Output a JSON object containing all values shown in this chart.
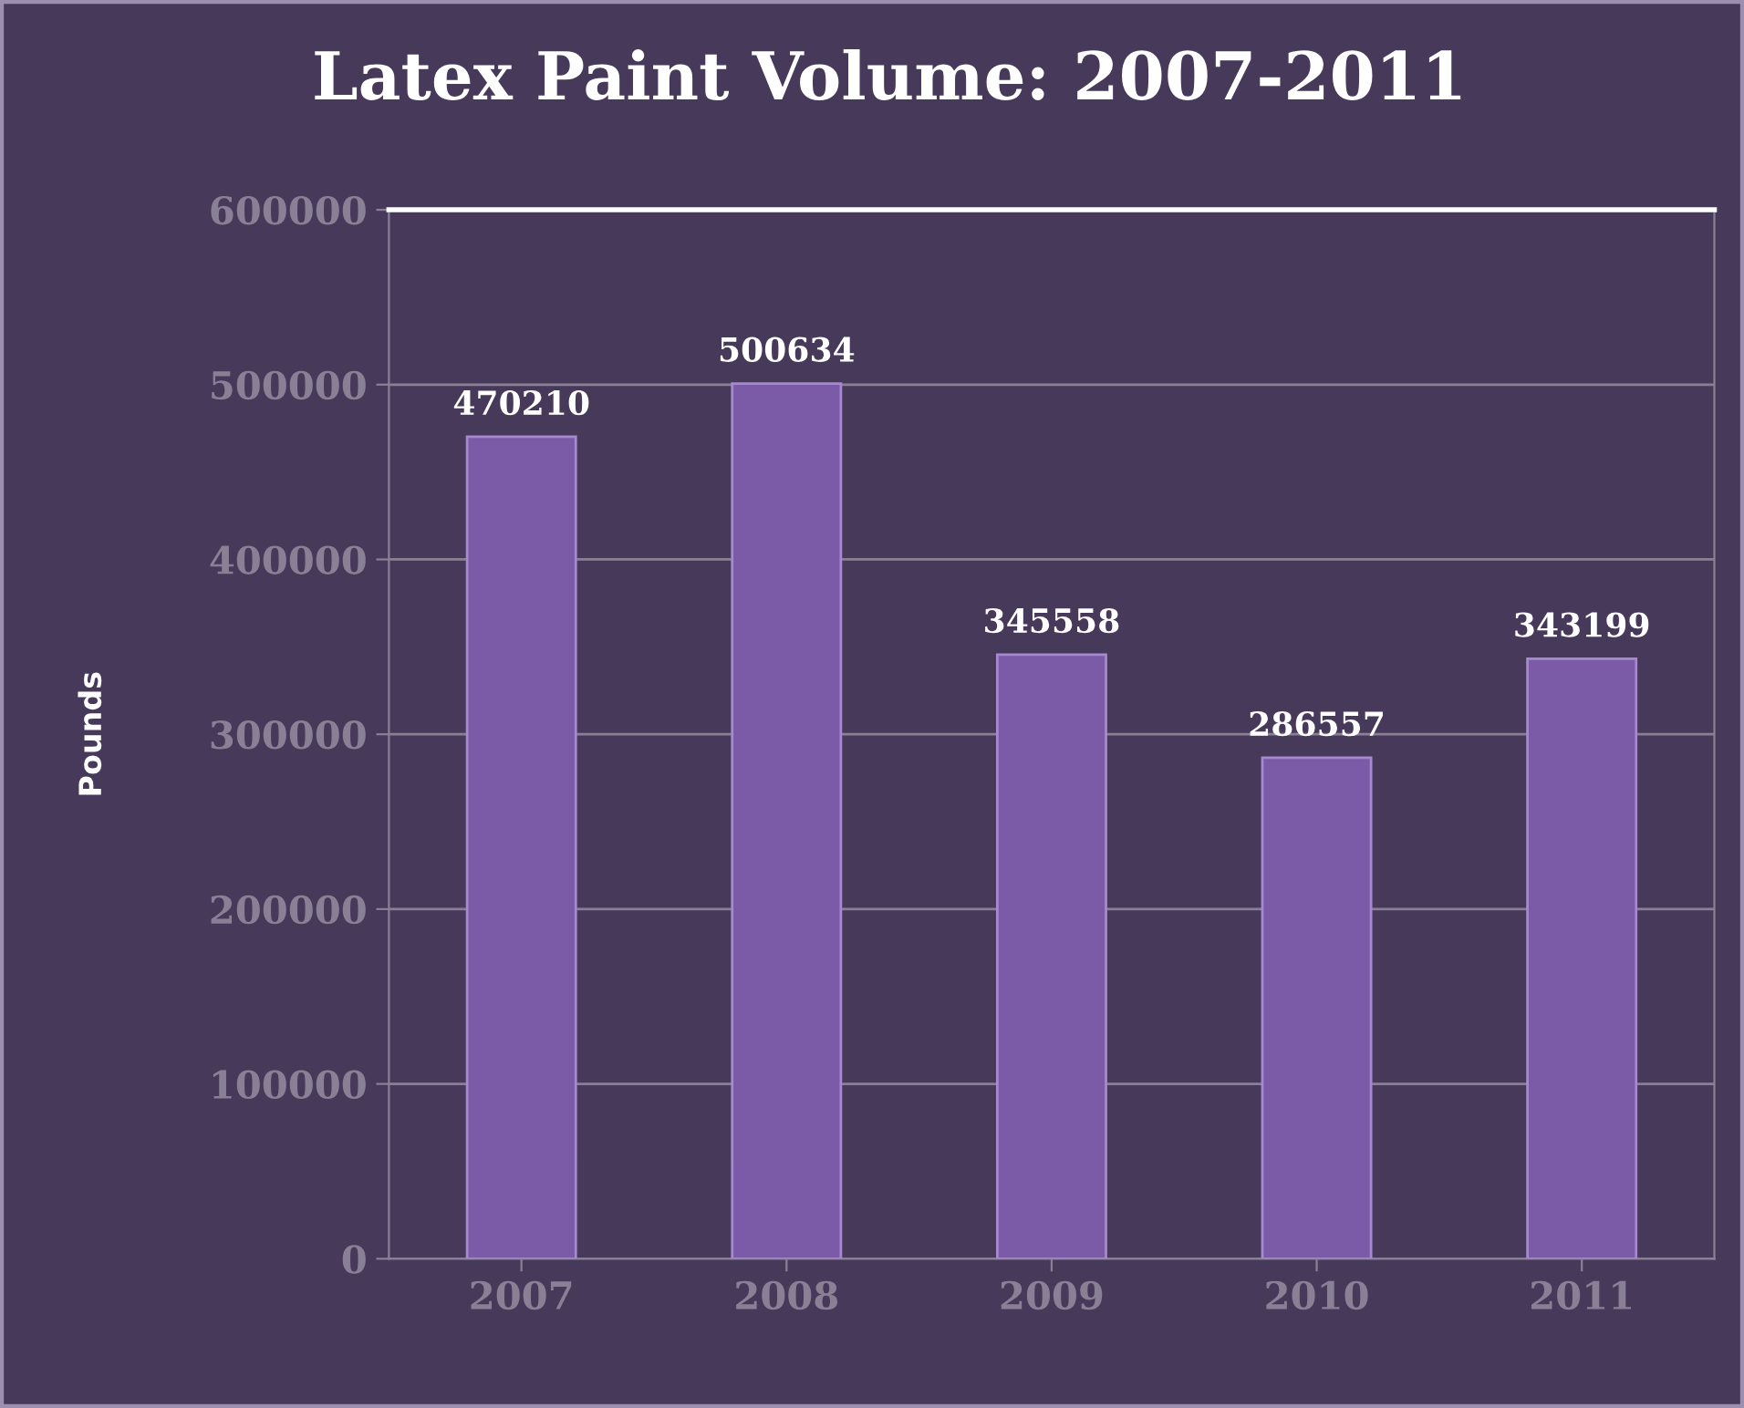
{
  "chart_data": {
    "type": "bar",
    "title": "Latex Paint Volume: 2007-2011",
    "ylabel": "Pounds",
    "categories": [
      "2007",
      "2008",
      "2009",
      "2010",
      "2011"
    ],
    "values": [
      470210,
      500634,
      345558,
      286557,
      343199
    ],
    "color": "#7b5aa8",
    "data_labels": true,
    "ylim": [
      0,
      600000
    ],
    "yticks": [
      0,
      100000,
      200000,
      300000,
      400000,
      500000,
      600000
    ],
    "grid": "y"
  }
}
